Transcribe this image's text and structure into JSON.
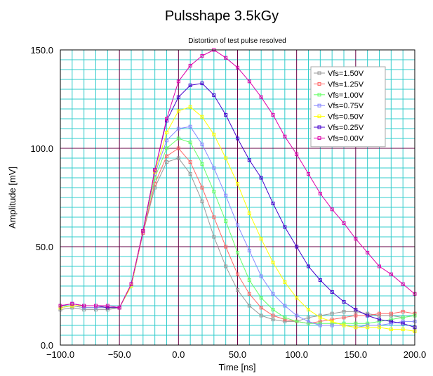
{
  "chart_data": {
    "type": "line",
    "title": "Pulsshape 3.5kGy",
    "subtitle": "Distortion of test pulse resolved",
    "xlabel": "Time [ns]",
    "ylabel": "Amplitude [mV]",
    "xlim": [
      -100,
      200
    ],
    "ylim": [
      0,
      150
    ],
    "x_ticks": [
      -100,
      -50,
      0,
      50,
      100,
      150,
      200
    ],
    "x_tick_labels": [
      "−100.0",
      "−50.0",
      "0.0",
      "50.0",
      "100.0",
      "150.0",
      "200.0"
    ],
    "y_ticks": [
      0,
      50,
      100,
      150
    ],
    "y_tick_labels": [
      "0.0",
      "50.0",
      "100.0",
      "150.0"
    ],
    "grid": true,
    "legend_position": "top-right",
    "x": [
      -100,
      -90,
      -80,
      -70,
      -60,
      -50,
      -40,
      -30,
      -20,
      -10,
      0,
      10,
      20,
      30,
      40,
      50,
      60,
      70,
      80,
      90,
      100,
      110,
      120,
      130,
      140,
      150,
      160,
      170,
      180,
      190,
      200
    ],
    "series": [
      {
        "name": "Vfs=1.50V",
        "color": "#999999",
        "values": [
          18,
          19,
          18,
          18,
          18,
          19,
          30,
          57,
          80,
          93,
          95,
          87,
          73,
          55,
          40,
          28,
          20,
          15,
          13,
          12,
          12,
          14,
          15,
          16,
          17,
          17,
          16,
          15,
          15,
          14,
          15
        ]
      },
      {
        "name": "Vfs=1.25V",
        "color": "#ff6666",
        "values": [
          19,
          20,
          19,
          19,
          19,
          19,
          30,
          57,
          82,
          96,
          100,
          93,
          80,
          65,
          50,
          36,
          26,
          19,
          15,
          13,
          12,
          11,
          12,
          13,
          14,
          15,
          15,
          16,
          16,
          17,
          16
        ]
      },
      {
        "name": "Vfs=1.00V",
        "color": "#66ff66",
        "values": [
          19,
          20,
          19,
          19,
          19,
          19,
          30,
          58,
          85,
          100,
          105,
          103,
          92,
          78,
          63,
          47,
          33,
          24,
          18,
          14,
          12,
          11,
          11,
          11,
          11,
          11,
          11,
          12,
          13,
          14,
          15
        ]
      },
      {
        "name": "Vfs=0.75V",
        "color": "#8888ff",
        "values": [
          19,
          20,
          19,
          19,
          19,
          19,
          30,
          58,
          87,
          104,
          110,
          111,
          102,
          90,
          76,
          61,
          48,
          35,
          26,
          20,
          15,
          12,
          10,
          10,
          10,
          9,
          10,
          10,
          11,
          12,
          12
        ]
      },
      {
        "name": "Vfs=0.50V",
        "color": "#ffff00",
        "values": [
          19,
          20,
          20,
          20,
          19,
          19,
          30,
          58,
          88,
          108,
          119,
          121,
          116,
          107,
          95,
          82,
          67,
          54,
          42,
          32,
          24,
          18,
          14,
          12,
          10,
          9,
          9,
          9,
          8,
          8,
          7
        ]
      },
      {
        "name": "Vfs=0.25V",
        "color": "#4400cc",
        "values": [
          20,
          21,
          20,
          20,
          19,
          19,
          31,
          58,
          89,
          114,
          126,
          132,
          133,
          127,
          117,
          105,
          94,
          85,
          72,
          60,
          50,
          40,
          33,
          27,
          22,
          18,
          15,
          13,
          12,
          11,
          9
        ]
      },
      {
        "name": "Vfs=0.00V",
        "color": "#dd00aa",
        "values": [
          20,
          21,
          20,
          20,
          20,
          19,
          31,
          58,
          89,
          115,
          134,
          142,
          147,
          150,
          146,
          141,
          134,
          126,
          117,
          106,
          97,
          87,
          77,
          69,
          62,
          54,
          47,
          40,
          36,
          31,
          26
        ]
      }
    ]
  }
}
